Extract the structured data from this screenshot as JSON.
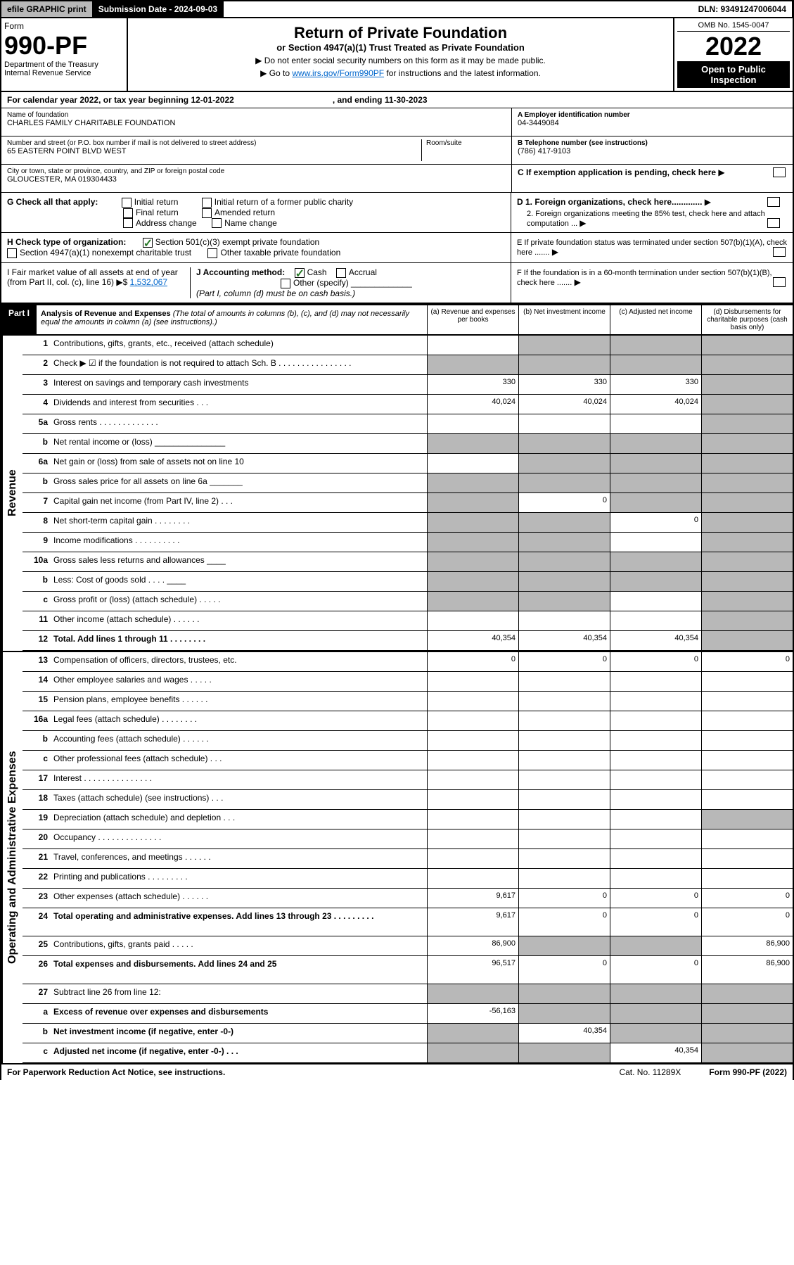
{
  "meta": {
    "efile": "efile GRAPHIC print",
    "subdate_label": "Submission Date - 2024-09-03",
    "dln": "DLN: 93491247006044",
    "form_word": "Form",
    "form_num": "990-PF",
    "dept1": "Department of the Treasury",
    "dept2": "Internal Revenue Service",
    "title": "Return of Private Foundation",
    "subtitle": "or Section 4947(a)(1) Trust Treated as Private Foundation",
    "instr1": "▶ Do not enter social security numbers on this form as it may be made public.",
    "instr2_pre": "▶ Go to ",
    "instr2_link": "www.irs.gov/Form990PF",
    "instr2_post": " for instructions and the latest information.",
    "omb": "OMB No. 1545-0047",
    "year": "2022",
    "open": "Open to Public Inspection"
  },
  "cal": {
    "text1": "For calendar year 2022, or tax year beginning 12-01-2022",
    "text2": ", and ending 11-30-2023"
  },
  "info": {
    "name_lbl": "Name of foundation",
    "name": "CHARLES FAMILY CHARITABLE FOUNDATION",
    "addr_lbl": "Number and street (or P.O. box number if mail is not delivered to street address)",
    "addr": "65 EASTERN POINT BLVD WEST",
    "room_lbl": "Room/suite",
    "city_lbl": "City or town, state or province, country, and ZIP or foreign postal code",
    "city": "GLOUCESTER, MA  019304433",
    "a_lbl": "A Employer identification number",
    "a_val": "04-3449084",
    "b_lbl": "B Telephone number (see instructions)",
    "b_val": "(786) 417-9103",
    "c_lbl": "C If exemption application is pending, check here",
    "d1": "D 1. Foreign organizations, check here.............",
    "d2": "2. Foreign organizations meeting the 85% test, check here and attach computation ...",
    "e": "E If private foundation status was terminated under section 507(b)(1)(A), check here .......",
    "f": "F If the foundation is in a 60-month termination under section 507(b)(1)(B), check here .......",
    "g_lbl": "G Check all that apply:",
    "g_opts": [
      "Initial return",
      "Initial return of a former public charity",
      "Final return",
      "Amended return",
      "Address change",
      "Name change"
    ],
    "h_lbl": "H Check type of organization:",
    "h1": "Section 501(c)(3) exempt private foundation",
    "h2": "Section 4947(a)(1) nonexempt charitable trust",
    "h3": "Other taxable private foundation",
    "i_lbl": "I Fair market value of all assets at end of year (from Part II, col. (c), line 16)",
    "i_val": "1,532,067",
    "j_lbl": "J Accounting method:",
    "j_cash": "Cash",
    "j_accrual": "Accrual",
    "j_other": "Other (specify)",
    "j_note": "(Part I, column (d) must be on cash basis.)"
  },
  "part1": {
    "badge": "Part I",
    "title": "Analysis of Revenue and Expenses",
    "note": "(The total of amounts in columns (b), (c), and (d) may not necessarily equal the amounts in column (a) (see instructions).)",
    "col_a": "(a) Revenue and expenses per books",
    "col_b": "(b) Net investment income",
    "col_c": "(c) Adjusted net income",
    "col_d": "(d) Disbursements for charitable purposes (cash basis only)"
  },
  "side_labels": {
    "revenue": "Revenue",
    "expenses": "Operating and Administrative Expenses"
  },
  "lines": [
    {
      "n": "1",
      "d": "Contributions, gifts, grants, etc., received (attach schedule)",
      "a": "",
      "b": "grey",
      "c": "grey",
      "dcol": "grey"
    },
    {
      "n": "2",
      "d": "Check ▶ ☑ if the foundation is not required to attach Sch. B   .  .  .  .  .  .  .  .  .  .  .  .  .  .  .  .",
      "a": "grey",
      "b": "grey",
      "c": "grey",
      "dcol": "grey"
    },
    {
      "n": "3",
      "d": "Interest on savings and temporary cash investments",
      "a": "330",
      "b": "330",
      "c": "330",
      "dcol": "grey"
    },
    {
      "n": "4",
      "d": "Dividends and interest from securities    .   .   .",
      "a": "40,024",
      "b": "40,024",
      "c": "40,024",
      "dcol": "grey"
    },
    {
      "n": "5a",
      "d": "Gross rents     .  .  .  .  .  .  .  .  .  .  .  .  .",
      "a": "",
      "b": "",
      "c": "",
      "dcol": "grey"
    },
    {
      "n": "b",
      "d": "Net rental income or (loss)  _______________",
      "a": "grey",
      "b": "grey",
      "c": "grey",
      "dcol": "grey"
    },
    {
      "n": "6a",
      "d": "Net gain or (loss) from sale of assets not on line 10",
      "a": "",
      "b": "grey",
      "c": "grey",
      "dcol": "grey"
    },
    {
      "n": "b",
      "d": "Gross sales price for all assets on line 6a _______",
      "a": "grey",
      "b": "grey",
      "c": "grey",
      "dcol": "grey"
    },
    {
      "n": "7",
      "d": "Capital gain net income (from Part IV, line 2)   .  .  .",
      "a": "grey",
      "b": "0",
      "c": "grey",
      "dcol": "grey"
    },
    {
      "n": "8",
      "d": "Net short-term capital gain  .  .  .  .  .  .  .  .",
      "a": "grey",
      "b": "grey",
      "c": "0",
      "dcol": "grey"
    },
    {
      "n": "9",
      "d": "Income modifications  .  .  .  .  .  .  .  .  .  .",
      "a": "grey",
      "b": "grey",
      "c": "",
      "dcol": "grey"
    },
    {
      "n": "10a",
      "d": "Gross sales less returns and allowances  ____",
      "a": "grey",
      "b": "grey",
      "c": "grey",
      "dcol": "grey"
    },
    {
      "n": "b",
      "d": "Less: Cost of goods sold    .  .  .  .   ____",
      "a": "grey",
      "b": "grey",
      "c": "grey",
      "dcol": "grey"
    },
    {
      "n": "c",
      "d": "Gross profit or (loss) (attach schedule)   .  .  .  .  .",
      "a": "grey",
      "b": "grey",
      "c": "",
      "dcol": "grey"
    },
    {
      "n": "11",
      "d": "Other income (attach schedule)   .  .  .  .  .  .",
      "a": "",
      "b": "",
      "c": "",
      "dcol": "grey"
    },
    {
      "n": "12",
      "d": "Total. Add lines 1 through 11   .  .  .  .  .  .  .  .",
      "a": "40,354",
      "b": "40,354",
      "c": "40,354",
      "dcol": "grey",
      "bold": true
    }
  ],
  "exp_lines": [
    {
      "n": "13",
      "d": "Compensation of officers, directors, trustees, etc.",
      "a": "0",
      "b": "0",
      "c": "0",
      "dcol": "0"
    },
    {
      "n": "14",
      "d": "Other employee salaries and wages   .  .  .  .  .",
      "a": "",
      "b": "",
      "c": "",
      "dcol": ""
    },
    {
      "n": "15",
      "d": "Pension plans, employee benefits  .  .  .  .  .  .",
      "a": "",
      "b": "",
      "c": "",
      "dcol": ""
    },
    {
      "n": "16a",
      "d": "Legal fees (attach schedule)  .  .  .  .  .  .  .  .",
      "a": "",
      "b": "",
      "c": "",
      "dcol": ""
    },
    {
      "n": "b",
      "d": "Accounting fees (attach schedule)  .  .  .  .  .  .",
      "a": "",
      "b": "",
      "c": "",
      "dcol": ""
    },
    {
      "n": "c",
      "d": "Other professional fees (attach schedule)   .  .  .",
      "a": "",
      "b": "",
      "c": "",
      "dcol": ""
    },
    {
      "n": "17",
      "d": "Interest  .  .  .  .  .  .  .  .  .  .  .  .  .  .  .",
      "a": "",
      "b": "",
      "c": "",
      "dcol": ""
    },
    {
      "n": "18",
      "d": "Taxes (attach schedule) (see instructions)    .  .  .",
      "a": "",
      "b": "",
      "c": "",
      "dcol": ""
    },
    {
      "n": "19",
      "d": "Depreciation (attach schedule) and depletion   .  .  .",
      "a": "",
      "b": "",
      "c": "",
      "dcol": "grey"
    },
    {
      "n": "20",
      "d": "Occupancy  .  .  .  .  .  .  .  .  .  .  .  .  .  .",
      "a": "",
      "b": "",
      "c": "",
      "dcol": ""
    },
    {
      "n": "21",
      "d": "Travel, conferences, and meetings  .  .  .  .  .  .",
      "a": "",
      "b": "",
      "c": "",
      "dcol": ""
    },
    {
      "n": "22",
      "d": "Printing and publications  .  .  .  .  .  .  .  .  .",
      "a": "",
      "b": "",
      "c": "",
      "dcol": ""
    },
    {
      "n": "23",
      "d": "Other expenses (attach schedule)  .  .  .  .  .  .",
      "a": "9,617",
      "b": "0",
      "c": "0",
      "dcol": "0"
    },
    {
      "n": "24",
      "d": "Total operating and administrative expenses. Add lines 13 through 23  .  .  .  .  .  .  .  .  .",
      "a": "9,617",
      "b": "0",
      "c": "0",
      "dcol": "0",
      "bold": true,
      "tall": true
    },
    {
      "n": "25",
      "d": "Contributions, gifts, grants paid    .  .  .  .  .",
      "a": "86,900",
      "b": "grey",
      "c": "grey",
      "dcol": "86,900"
    },
    {
      "n": "26",
      "d": "Total expenses and disbursements. Add lines 24 and 25",
      "a": "96,517",
      "b": "0",
      "c": "0",
      "dcol": "86,900",
      "bold": true,
      "tall": true
    },
    {
      "n": "27",
      "d": "Subtract line 26 from line 12:",
      "a": "grey",
      "b": "grey",
      "c": "grey",
      "dcol": "grey"
    },
    {
      "n": "a",
      "d": "Excess of revenue over expenses and disbursements",
      "a": "-56,163",
      "b": "grey",
      "c": "grey",
      "dcol": "grey",
      "bold": true
    },
    {
      "n": "b",
      "d": "Net investment income (if negative, enter -0-)",
      "a": "grey",
      "b": "40,354",
      "c": "grey",
      "dcol": "grey",
      "bold": true
    },
    {
      "n": "c",
      "d": "Adjusted net income (if negative, enter -0-)   .  .  .",
      "a": "grey",
      "b": "grey",
      "c": "40,354",
      "dcol": "grey",
      "bold": true
    }
  ],
  "footer": {
    "left": "For Paperwork Reduction Act Notice, see instructions.",
    "cat": "Cat. No. 11289X",
    "right": "Form 990-PF (2022)"
  }
}
